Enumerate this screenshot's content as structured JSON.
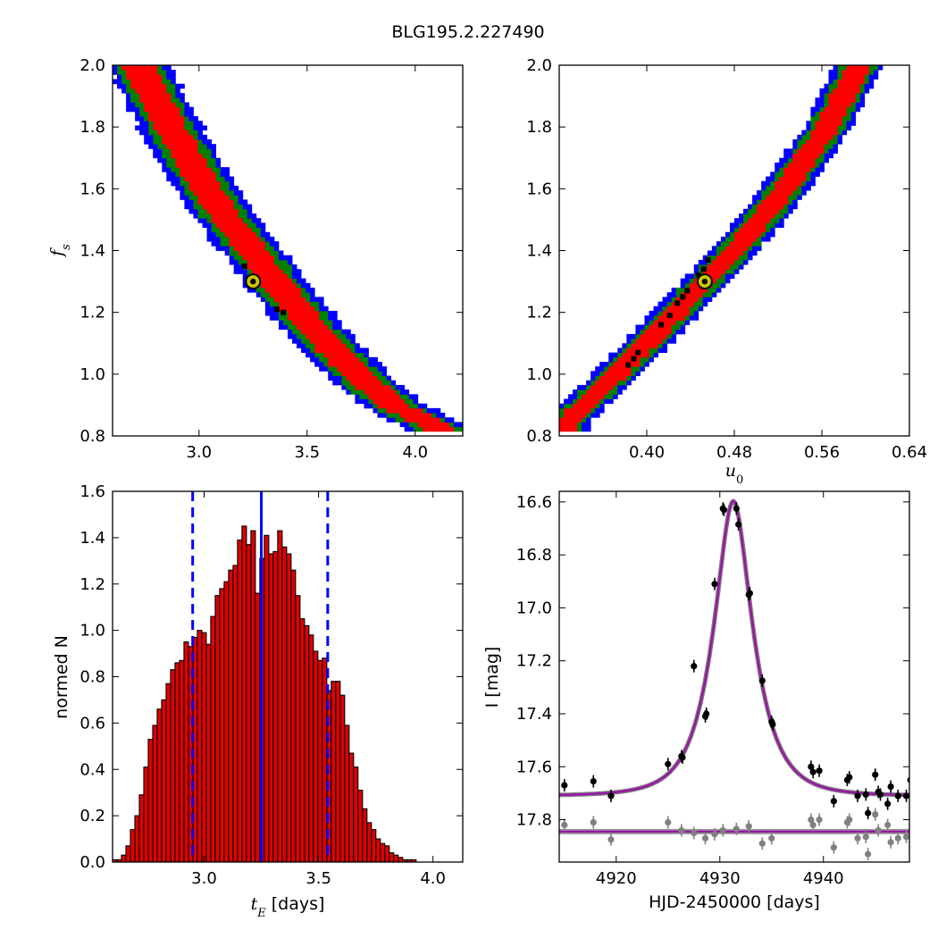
{
  "figure": {
    "title": "BLG195.2.227490"
  },
  "chart_data": [
    {
      "type": "heatmap",
      "panel": "top-left",
      "xlabel": "",
      "ylabel": "f_s",
      "xlim": [
        2.6,
        4.22
      ],
      "ylim": [
        0.8,
        2.0
      ],
      "xticks": [
        "3.0",
        "3.5",
        "4.0"
      ],
      "xtick_values": [
        3.0,
        3.5,
        4.0
      ],
      "yticks": [
        "0.8",
        "1.0",
        "1.2",
        "1.4",
        "1.6",
        "1.8",
        "2.0"
      ],
      "ytick_values": [
        0.8,
        1.0,
        1.2,
        1.4,
        1.6,
        1.8,
        2.0
      ],
      "levels": [
        "red",
        "green",
        "blue"
      ],
      "colors": {
        "inner": "#ff0000",
        "middle": "#008000",
        "outer": "#0000ff",
        "best": "#000000",
        "marker_fill": "#c8c800"
      },
      "ridge": [
        [
          2.72,
          2.0
        ],
        [
          2.82,
          1.86
        ],
        [
          2.95,
          1.7
        ],
        [
          3.1,
          1.53
        ],
        [
          3.3,
          1.35
        ],
        [
          3.5,
          1.17
        ],
        [
          3.7,
          1.02
        ],
        [
          3.9,
          0.9
        ],
        [
          4.1,
          0.83
        ]
      ],
      "band_halfwidth": {
        "inner": 0.08,
        "middle": 0.12,
        "outer": 0.16
      },
      "best_points": [
        [
          3.21,
          1.35
        ],
        [
          3.36,
          1.21
        ],
        [
          3.39,
          1.2
        ]
      ],
      "marker": [
        3.25,
        1.3
      ]
    },
    {
      "type": "heatmap",
      "panel": "top-right",
      "xlabel": "u_0",
      "ylabel": "",
      "xlim": [
        0.32,
        0.64
      ],
      "ylim": [
        0.8,
        2.0
      ],
      "xticks": [
        "0.40",
        "0.48",
        "0.56",
        "0.64"
      ],
      "xtick_values": [
        0.4,
        0.48,
        0.56,
        0.64
      ],
      "yticks": [
        "0.8",
        "1.0",
        "1.2",
        "1.4",
        "1.6",
        "1.8",
        "2.0"
      ],
      "ytick_values": [
        0.8,
        1.0,
        1.2,
        1.4,
        1.6,
        1.8,
        2.0
      ],
      "levels": [
        "red",
        "green",
        "blue"
      ],
      "colors": {
        "inner": "#ff0000",
        "middle": "#008000",
        "outer": "#0000ff",
        "best": "#000000",
        "marker_fill": "#c8c800"
      },
      "ridge": [
        [
          0.325,
          0.84
        ],
        [
          0.36,
          0.96
        ],
        [
          0.4,
          1.1
        ],
        [
          0.445,
          1.27
        ],
        [
          0.49,
          1.44
        ],
        [
          0.53,
          1.62
        ],
        [
          0.565,
          1.8
        ],
        [
          0.594,
          2.0
        ]
      ],
      "band_halfwidth": {
        "inner": 0.012,
        "middle": 0.018,
        "outer": 0.024
      },
      "best_points": [
        [
          0.383,
          1.03
        ],
        [
          0.388,
          1.05
        ],
        [
          0.392,
          1.07
        ],
        [
          0.413,
          1.16
        ],
        [
          0.421,
          1.19
        ],
        [
          0.428,
          1.23
        ],
        [
          0.433,
          1.25
        ],
        [
          0.437,
          1.27
        ],
        [
          0.447,
          1.32
        ],
        [
          0.452,
          1.34
        ],
        [
          0.456,
          1.37
        ]
      ],
      "marker": [
        0.453,
        1.3
      ]
    },
    {
      "type": "bar",
      "panel": "bottom-left",
      "xlabel": "t_E [days]",
      "ylabel": "normed N",
      "xlim": [
        2.6,
        4.13
      ],
      "ylim": [
        0.0,
        1.6
      ],
      "xticks": [
        "3.0",
        "3.5",
        "4.0"
      ],
      "xtick_values": [
        3.0,
        3.5,
        4.0
      ],
      "yticks": [
        "0.0",
        "0.2",
        "0.4",
        "0.6",
        "0.8",
        "1.0",
        "1.2",
        "1.4",
        "1.6"
      ],
      "ytick_values": [
        0.0,
        0.2,
        0.4,
        0.6,
        0.8,
        1.0,
        1.2,
        1.4,
        1.6
      ],
      "bin_start": 2.6,
      "bin_width": 0.0195,
      "values": [
        0.01,
        0.01,
        0.03,
        0.07,
        0.14,
        0.2,
        0.29,
        0.41,
        0.53,
        0.59,
        0.66,
        0.7,
        0.77,
        0.83,
        0.86,
        0.87,
        0.95,
        0.93,
        0.97,
        1.0,
        0.99,
        0.94,
        1.06,
        1.15,
        1.18,
        1.21,
        1.26,
        1.28,
        1.39,
        1.45,
        1.37,
        1.43,
        1.16,
        1.31,
        1.41,
        1.33,
        1.34,
        1.43,
        1.36,
        1.33,
        1.26,
        1.15,
        1.05,
        1.02,
        0.98,
        0.91,
        0.87,
        0.88,
        0.74,
        0.78,
        0.78,
        0.72,
        0.59,
        0.47,
        0.41,
        0.31,
        0.23,
        0.17,
        0.14,
        0.1,
        0.08,
        0.07,
        0.04,
        0.03,
        0.02,
        0.01,
        0.01,
        0.01,
        0.0
      ],
      "vlines": {
        "solid": 3.25,
        "dashed": [
          2.95,
          3.54
        ]
      },
      "colors": {
        "bar": "#e00000",
        "edge": "#000000",
        "lines": "#0000ff"
      }
    },
    {
      "type": "scatter",
      "panel": "bottom-right",
      "xlabel": "HJD-2450000 [days]",
      "ylabel": "I [mag]",
      "xlim": [
        4914.5,
        4948.3
      ],
      "ylim": [
        17.96,
        16.56
      ],
      "inverted_y": true,
      "xticks": [
        "4920",
        "4930",
        "4940"
      ],
      "xtick_values": [
        4920,
        4930,
        4940
      ],
      "yticks": [
        "16.6",
        "16.8",
        "17.0",
        "17.2",
        "17.4",
        "17.6",
        "17.8"
      ],
      "ytick_values": [
        16.6,
        16.8,
        17.0,
        17.2,
        17.4,
        17.6,
        17.8
      ],
      "model": {
        "t0": 4931.3,
        "tE": 3.25,
        "u0": 0.453,
        "base_mag": 17.71,
        "fs": 1.3,
        "curve_color": "#9a16a6",
        "line_mag": 17.845
      },
      "series": [
        {
          "color": "#000000",
          "points": [
            [
              4915.0,
              17.67
            ],
            [
              4917.8,
              17.655
            ],
            [
              4919.5,
              17.71
            ],
            [
              4925.0,
              17.59
            ],
            [
              4926.3,
              17.56
            ],
            [
              4926.4,
              17.565
            ],
            [
              4927.5,
              17.22
            ],
            [
              4928.6,
              17.41
            ],
            [
              4928.7,
              17.4
            ],
            [
              4929.5,
              16.91
            ],
            [
              4930.3,
              16.625
            ],
            [
              4930.4,
              16.63
            ],
            [
              4931.6,
              16.625
            ],
            [
              4931.8,
              16.685
            ],
            [
              4932.8,
              16.95
            ],
            [
              4932.9,
              16.945
            ],
            [
              4934.1,
              17.275
            ],
            [
              4935.0,
              17.43
            ],
            [
              4935.1,
              17.44
            ],
            [
              4938.8,
              17.6
            ],
            [
              4939.0,
              17.62
            ],
            [
              4939.6,
              17.615
            ],
            [
              4941.0,
              17.73
            ],
            [
              4942.3,
              17.65
            ],
            [
              4942.5,
              17.64
            ],
            [
              4943.3,
              17.71
            ],
            [
              4944.1,
              17.705
            ],
            [
              4944.3,
              17.775
            ],
            [
              4945.0,
              17.63
            ],
            [
              4945.3,
              17.695
            ],
            [
              4945.5,
              17.705
            ],
            [
              4946.2,
              17.74
            ],
            [
              4946.5,
              17.675
            ],
            [
              4947.2,
              17.71
            ],
            [
              4948.0,
              17.71
            ],
            [
              4948.4,
              17.65
            ]
          ]
        },
        {
          "color": "#808080",
          "points": [
            [
              4915.0,
              17.82
            ],
            [
              4917.8,
              17.81
            ],
            [
              4919.5,
              17.875
            ],
            [
              4925.0,
              17.81
            ],
            [
              4926.3,
              17.84
            ],
            [
              4927.5,
              17.85
            ],
            [
              4928.6,
              17.87
            ],
            [
              4929.5,
              17.855
            ],
            [
              4930.3,
              17.84
            ],
            [
              4931.6,
              17.835
            ],
            [
              4932.8,
              17.825
            ],
            [
              4934.1,
              17.89
            ],
            [
              4935.0,
              17.87
            ],
            [
              4938.8,
              17.8
            ],
            [
              4939.0,
              17.82
            ],
            [
              4939.6,
              17.8
            ],
            [
              4941.0,
              17.905
            ],
            [
              4942.3,
              17.81
            ],
            [
              4942.5,
              17.8
            ],
            [
              4943.3,
              17.87
            ],
            [
              4944.1,
              17.865
            ],
            [
              4944.3,
              17.93
            ],
            [
              4945.0,
              17.78
            ],
            [
              4945.3,
              17.84
            ],
            [
              4946.2,
              17.82
            ],
            [
              4946.5,
              17.885
            ],
            [
              4947.2,
              17.87
            ],
            [
              4948.0,
              17.865
            ]
          ]
        }
      ]
    }
  ]
}
